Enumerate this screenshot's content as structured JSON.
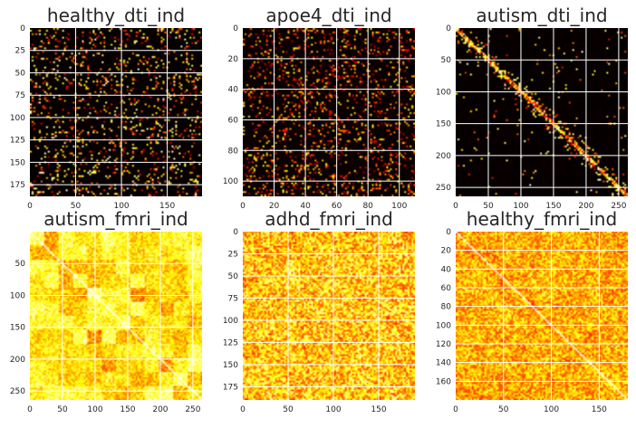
{
  "figure": {
    "background": "#ffffff",
    "colormap": "hot",
    "gridline_color": "#ffffff"
  },
  "chart_data": [
    {
      "type": "heatmap",
      "title": "healthy_dti_ind",
      "n": 188,
      "xlim": [
        0,
        188
      ],
      "ylim": [
        188,
        0
      ],
      "xticks": [
        0,
        50,
        100,
        150
      ],
      "yticks": [
        0,
        25,
        50,
        75,
        100,
        125,
        150,
        175
      ],
      "pattern": "sparse",
      "density": 0.12,
      "grid": true
    },
    {
      "type": "heatmap",
      "title": "apoe4_dti_ind",
      "n": 110,
      "xlim": [
        0,
        110
      ],
      "ylim": [
        110,
        0
      ],
      "xticks": [
        0,
        20,
        40,
        60,
        80,
        100
      ],
      "yticks": [
        0,
        20,
        40,
        60,
        80,
        100
      ],
      "pattern": "sparse_blocks",
      "density": 0.08,
      "grid": true
    },
    {
      "type": "heatmap",
      "title": "autism_dti_ind",
      "n": 264,
      "xlim": [
        0,
        264
      ],
      "ylim": [
        264,
        0
      ],
      "xticks": [
        0,
        50,
        100,
        150,
        200,
        250
      ],
      "yticks": [
        0,
        50,
        100,
        150,
        200,
        250
      ],
      "pattern": "diagonal_sparse",
      "density": 0.02,
      "grid": true
    },
    {
      "type": "heatmap",
      "title": "autism_fmri_ind",
      "n": 264,
      "xlim": [
        0,
        264
      ],
      "ylim": [
        264,
        0
      ],
      "xticks": [
        0,
        50,
        100,
        150,
        200,
        250
      ],
      "yticks": [
        50,
        100,
        150,
        200,
        250
      ],
      "pattern": "dense_blocks",
      "density": 1.0,
      "grid": true
    },
    {
      "type": "heatmap",
      "title": "adhd_fmri_ind",
      "n": 190,
      "xlim": [
        0,
        190
      ],
      "ylim": [
        190,
        0
      ],
      "xticks": [
        0,
        50,
        100,
        150
      ],
      "yticks": [
        0,
        25,
        50,
        75,
        100,
        125,
        150,
        175
      ],
      "pattern": "dense",
      "density": 1.0,
      "grid": true
    },
    {
      "type": "heatmap",
      "title": "healthy_fmri_ind",
      "n": 180,
      "xlim": [
        0,
        180
      ],
      "ylim": [
        180,
        0
      ],
      "xticks": [
        0,
        50,
        100,
        150
      ],
      "yticks": [
        0,
        20,
        40,
        60,
        80,
        100,
        120,
        140,
        160
      ],
      "pattern": "dense_diagonal",
      "density": 1.0,
      "grid": true
    }
  ]
}
